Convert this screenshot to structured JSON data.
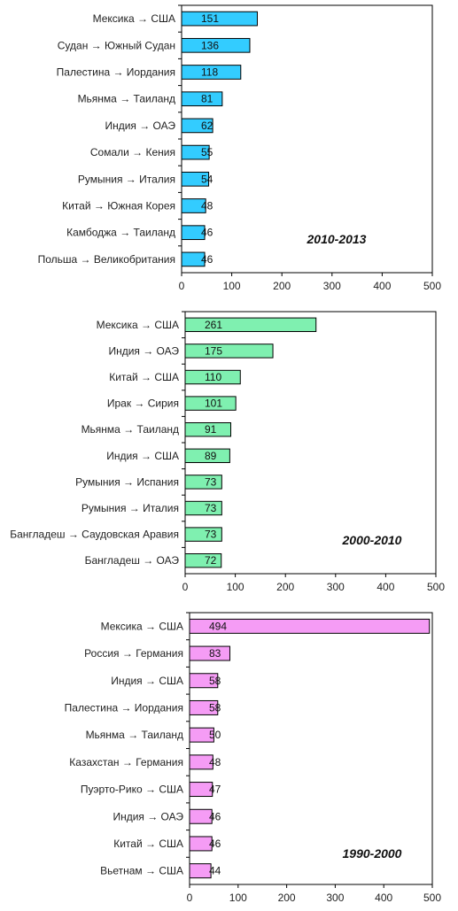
{
  "chart_data": [
    {
      "type": "bar",
      "orientation": "horizontal",
      "title": "2010-2013",
      "color": "#33ccff",
      "xlim": [
        0,
        500
      ],
      "xticks": [
        "0",
        "100",
        "200",
        "300",
        "400",
        "500"
      ],
      "categories": [
        "Мексика → США",
        "Судан → Южный Судан",
        "Палестина → Иордания",
        "Мьянма → Таиланд",
        "Индия → ОАЭ",
        "Сомали → Кения",
        "Румыния → Италия",
        "Китай → Южная Корея",
        "Камбоджа → Таиланд",
        "Польша → Великобритания"
      ],
      "values": [
        151,
        136,
        118,
        81,
        62,
        55,
        54,
        48,
        46,
        46
      ]
    },
    {
      "type": "bar",
      "orientation": "horizontal",
      "title": "2000-2010",
      "color": "#7ff0b0",
      "xlim": [
        0,
        500
      ],
      "xticks": [
        "0",
        "100",
        "200",
        "300",
        "400",
        "500"
      ],
      "categories": [
        "Мексика → США",
        "Индия → ОАЭ",
        "Китай → США",
        "Ирак → Сирия",
        "Мьянма → Таиланд",
        "Индия → США",
        "Румыния → Испания",
        "Румыния → Италия",
        "Бангладеш → Саудовская Аравия",
        "Бангладеш → ОАЭ"
      ],
      "values": [
        261,
        175,
        110,
        101,
        91,
        89,
        73,
        73,
        73,
        72
      ]
    },
    {
      "type": "bar",
      "orientation": "horizontal",
      "title": "1990-2000",
      "color": "#f59cf5",
      "xlim": [
        0,
        500
      ],
      "xticks": [
        "0",
        "100",
        "200",
        "300",
        "400",
        "500"
      ],
      "categories": [
        "Мексика → США",
        "Россия → Германия",
        "Индия → США",
        "Палестина → Иордания",
        "Мьянма → Таиланд",
        "Казахстан → Германия",
        "Пуэрто-Рико → США",
        "Индия → ОАЭ",
        "Китай → США",
        "Вьетнам → США"
      ],
      "values": [
        494,
        83,
        58,
        58,
        50,
        48,
        47,
        46,
        46,
        44
      ]
    }
  ]
}
